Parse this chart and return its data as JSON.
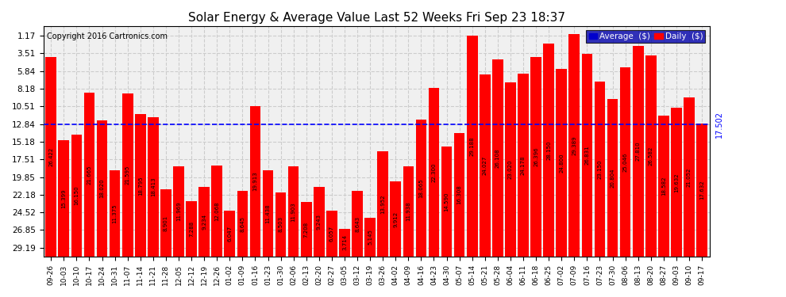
{
  "title": "Solar Energy & Average Value Last 52 Weeks Fri Sep 23 18:37",
  "copyright": "Copyright 2016 Cartronics.com",
  "average_value": 17.502,
  "average_label": "17.502",
  "bar_color": "#ff0000",
  "average_line_color": "#0000ff",
  "grid_color": "#cccccc",
  "background_color": "#ffffff",
  "plot_bg_color": "#f0f0f0",
  "ylabel_right": [
    "29.19",
    "26.85",
    "24.52",
    "22.18",
    "19.85",
    "17.51",
    "15.18",
    "12.84",
    "10.51",
    "8.18",
    "5.84",
    "3.51",
    "1.17"
  ],
  "yticks": [
    1.17,
    3.51,
    5.84,
    8.18,
    10.51,
    12.84,
    15.18,
    17.51,
    19.85,
    22.18,
    24.52,
    26.85,
    29.19
  ],
  "categories": [
    "09-26",
    "10-03",
    "10-10",
    "10-17",
    "10-24",
    "10-31",
    "11-07",
    "11-14",
    "11-21",
    "11-28",
    "12-05",
    "12-12",
    "12-19",
    "12-26",
    "01-02",
    "01-09",
    "01-16",
    "01-23",
    "01-30",
    "02-06",
    "02-13",
    "02-20",
    "02-27",
    "03-05",
    "03-12",
    "03-19",
    "03-26",
    "04-02",
    "04-09",
    "04-16",
    "04-23",
    "04-30",
    "05-07",
    "05-14",
    "05-21",
    "05-28",
    "06-04",
    "06-11",
    "06-18",
    "06-25",
    "07-02",
    "07-09",
    "07-16",
    "07-23",
    "07-30",
    "08-06",
    "08-13",
    "08-20",
    "08-27",
    "09-03",
    "09-10",
    "09-17"
  ],
  "values": [
    26.422,
    15.399,
    16.15,
    21.665,
    18.02,
    11.375,
    21.595,
    18.795,
    18.413,
    8.901,
    11.969,
    7.288,
    9.234,
    12.068,
    6.047,
    8.645,
    19.913,
    11.438,
    8.503,
    11.903,
    7.208,
    9.243,
    6.057,
    3.714,
    8.643,
    5.145,
    13.952,
    9.912,
    11.938,
    18.065,
    22.3,
    14.59,
    16.308,
    29.188,
    24.027,
    26.108,
    23.02,
    24.178,
    26.396,
    28.15,
    24.8,
    29.389,
    26.831,
    23.15,
    20.804,
    25.046,
    27.81,
    26.582,
    18.582,
    19.632,
    21.052,
    17.632
  ],
  "legend_avg_color": "#0000cc",
  "legend_daily_color": "#ff0000",
  "legend_avg_label": "Average  ($)",
  "legend_daily_label": "Daily  ($)"
}
